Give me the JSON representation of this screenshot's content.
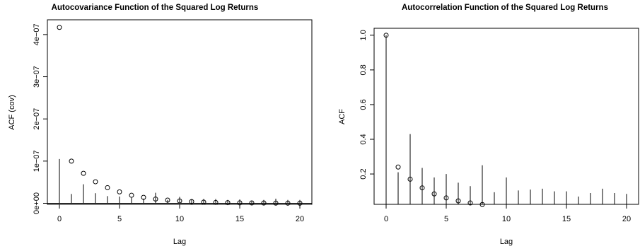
{
  "chart_data": [
    {
      "type": "scatter",
      "title": "Autocovariance Function of the Squared Log Returns",
      "xlabel": "Lag",
      "ylabel": "ACF (cov)",
      "xlim": [
        -1,
        21
      ],
      "ylim": [
        -2.5e-09,
        4.35e-07
      ],
      "x_ticks": [
        0,
        5,
        10,
        15,
        20
      ],
      "x_tick_labels": [
        "0",
        "5",
        "10",
        "15",
        "20"
      ],
      "y_ticks": [
        0,
        1e-07,
        2e-07,
        3e-07,
        4e-07
      ],
      "y_tick_labels": [
        "0e+00",
        "1e−07",
        "2e−07",
        "3e−07",
        "4e−07"
      ],
      "x": [
        0,
        1,
        2,
        3,
        4,
        5,
        6,
        7,
        8,
        9,
        10,
        11,
        12,
        13,
        14,
        15,
        16,
        17,
        18,
        19,
        20
      ],
      "points": [
        4.17e-07,
        1e-07,
        7.1e-08,
        5.1e-08,
        3.7e-08,
        2.7e-08,
        1.9e-08,
        1.4e-08,
        1e-08,
        7.5e-09,
        5.5e-09,
        4e-09,
        2.8e-09,
        2e-09,
        1.5e-09,
        1.1e-09,
        8e-10,
        6e-10,
        4e-10,
        3e-10,
        2e-10
      ],
      "lines": [
        1.05e-07,
        2.2e-08,
        4.5e-08,
        2.4e-08,
        1.7e-08,
        1.6e-08,
        1.3e-08,
        1.1e-08,
        2.5e-08,
        8e-09,
        1.5e-08,
        1e-08,
        1e-08,
        1e-08,
        8e-09,
        9e-09,
        6e-09,
        8e-09,
        1.1e-08,
        8e-09,
        8e-09
      ],
      "baseline": 0,
      "grid": false
    },
    {
      "type": "scatter",
      "title": "Autocorrelation Function of the Squared Log Returns",
      "xlabel": "Lag",
      "ylabel": "ACF",
      "xlim": [
        -1,
        21
      ],
      "ylim": [
        0.025,
        1.04
      ],
      "x_ticks": [
        0,
        5,
        10,
        15,
        20
      ],
      "x_tick_labels": [
        "0",
        "5",
        "10",
        "15",
        "20"
      ],
      "y_ticks": [
        0.2,
        0.4,
        0.6,
        0.8,
        1.0
      ],
      "y_tick_labels": [
        "0.2",
        "0.4",
        "0.6",
        "0.8",
        "1.0"
      ],
      "x": [
        0,
        1,
        2,
        3,
        4,
        5,
        6,
        7,
        8,
        9,
        10,
        11,
        12,
        13,
        14,
        15,
        16,
        17,
        18,
        19,
        20
      ],
      "points": [
        1.0,
        0.24,
        0.17,
        0.12,
        0.085,
        0.062,
        0.045,
        0.033,
        0.024,
        0.018,
        0.013,
        0.01,
        0.007,
        0.005,
        0.004,
        0.003,
        0.002,
        0.0015,
        0.001,
        0.0008,
        0.0006
      ],
      "lines": [
        1.0,
        0.21,
        0.43,
        0.235,
        0.18,
        0.2,
        0.15,
        0.13,
        0.25,
        0.095,
        0.18,
        0.105,
        0.11,
        0.115,
        0.1,
        0.1,
        0.07,
        0.09,
        0.115,
        0.09,
        0.085
      ],
      "grid": false
    }
  ]
}
